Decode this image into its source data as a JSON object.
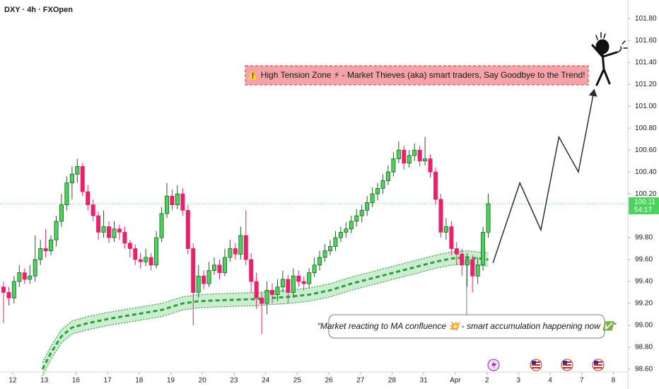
{
  "chart_data": {
    "type": "candlestick",
    "title": "DXY · 4h · FXOpen",
    "up_color": "#4cd35c",
    "down_color": "#ec1f6a",
    "xlim": [
      -0.67,
      118.5
    ],
    "ylim": [
      98.58,
      101.97
    ],
    "yticks": [
      {
        "value": 101.8,
        "label": "101.80"
      },
      {
        "value": 101.6,
        "label": "101.60"
      },
      {
        "value": 101.4,
        "label": "101.40"
      },
      {
        "value": 101.2,
        "label": "101.20"
      },
      {
        "value": 101.0,
        "label": "101.00"
      },
      {
        "value": 100.8,
        "label": "100.80"
      },
      {
        "value": 100.6,
        "label": "100.60"
      },
      {
        "value": 100.4,
        "label": "100.40"
      },
      {
        "value": 100.2,
        "label": "100.20"
      },
      {
        "value": 99.8,
        "label": "99.80"
      },
      {
        "value": 99.6,
        "label": "99.60"
      },
      {
        "value": 99.4,
        "label": "99.40"
      },
      {
        "value": 99.2,
        "label": "99.20"
      },
      {
        "value": 99.0,
        "label": "99.00"
      },
      {
        "value": 98.8,
        "label": "98.80"
      },
      {
        "value": 98.6,
        "label": "98.60"
      }
    ],
    "xticks": [
      {
        "value": 1.74,
        "label": "12"
      },
      {
        "value": 7.74,
        "label": "13"
      },
      {
        "value": 13.74,
        "label": "16"
      },
      {
        "value": 19.74,
        "label": "17"
      },
      {
        "value": 25.74,
        "label": "18"
      },
      {
        "value": 31.74,
        "label": "19"
      },
      {
        "value": 37.74,
        "label": "20"
      },
      {
        "value": 43.74,
        "label": "23"
      },
      {
        "value": 49.74,
        "label": "24"
      },
      {
        "value": 55.74,
        "label": "25"
      },
      {
        "value": 61.74,
        "label": "26"
      },
      {
        "value": 67.74,
        "label": "27"
      },
      {
        "value": 73.74,
        "label": "28"
      },
      {
        "value": 79.74,
        "label": "31"
      },
      {
        "value": 85.74,
        "label": "Apr"
      },
      {
        "value": 91.74,
        "label": "2"
      },
      {
        "value": 97.74,
        "label": "3"
      },
      {
        "value": 103.74,
        "label": "4"
      },
      {
        "value": 109.74,
        "label": "7"
      },
      {
        "value": 115.74,
        "label": "8"
      }
    ],
    "candles": [
      [
        99.35,
        99.4,
        99.02,
        99.3
      ],
      [
        99.3,
        99.35,
        99.18,
        99.25
      ],
      [
        99.25,
        99.45,
        99.2,
        99.4
      ],
      [
        99.4,
        99.55,
        99.35,
        99.48
      ],
      [
        99.48,
        99.52,
        99.38,
        99.42
      ],
      [
        99.42,
        99.55,
        99.38,
        99.45
      ],
      [
        99.45,
        99.82,
        99.4,
        99.6
      ],
      [
        99.6,
        99.78,
        99.55,
        99.7
      ],
      [
        99.7,
        99.88,
        99.62,
        99.68
      ],
      [
        99.68,
        99.82,
        99.64,
        99.78
      ],
      [
        99.78,
        100.0,
        99.72,
        99.95
      ],
      [
        99.95,
        100.2,
        99.9,
        100.1
      ],
      [
        100.1,
        100.36,
        100.05,
        100.3
      ],
      [
        100.3,
        100.45,
        100.15,
        100.38
      ],
      [
        100.38,
        100.52,
        100.3,
        100.45
      ],
      [
        100.45,
        100.48,
        100.18,
        100.22
      ],
      [
        100.22,
        100.28,
        100.05,
        100.1
      ],
      [
        100.1,
        100.15,
        99.95,
        100.0
      ],
      [
        100.0,
        100.04,
        99.78,
        99.85
      ],
      [
        99.85,
        100.05,
        99.8,
        99.9
      ],
      [
        99.9,
        99.95,
        99.75,
        99.8
      ],
      [
        99.8,
        99.95,
        99.76,
        99.88
      ],
      [
        99.88,
        99.92,
        99.78,
        99.85
      ],
      [
        99.85,
        99.9,
        99.7,
        99.75
      ],
      [
        99.75,
        99.78,
        99.62,
        99.7
      ],
      [
        99.7,
        99.74,
        99.55,
        99.6
      ],
      [
        99.6,
        99.66,
        99.52,
        99.58
      ],
      [
        99.58,
        99.7,
        99.54,
        99.62
      ],
      [
        99.62,
        99.66,
        99.5,
        99.55
      ],
      [
        99.55,
        99.86,
        99.52,
        99.8
      ],
      [
        99.8,
        100.08,
        99.76,
        100.02
      ],
      [
        100.02,
        100.3,
        99.98,
        100.18
      ],
      [
        100.18,
        100.24,
        100.05,
        100.1
      ],
      [
        100.1,
        100.28,
        100.06,
        100.2
      ],
      [
        100.2,
        100.25,
        100.0,
        100.05
      ],
      [
        100.05,
        100.1,
        99.65,
        99.7
      ],
      [
        99.7,
        99.75,
        99.0,
        99.3
      ],
      [
        99.3,
        99.55,
        99.25,
        99.45
      ],
      [
        99.45,
        99.5,
        99.33,
        99.38
      ],
      [
        99.38,
        99.58,
        99.35,
        99.5
      ],
      [
        99.5,
        99.62,
        99.46,
        99.55
      ],
      [
        99.55,
        99.6,
        99.42,
        99.48
      ],
      [
        99.48,
        99.7,
        99.45,
        99.62
      ],
      [
        99.62,
        99.78,
        99.58,
        99.7
      ],
      [
        99.7,
        99.75,
        99.6,
        99.65
      ],
      [
        99.65,
        99.9,
        99.6,
        99.82
      ],
      [
        99.82,
        100.05,
        99.55,
        99.6
      ],
      [
        99.6,
        99.66,
        99.3,
        99.4
      ],
      [
        99.4,
        99.48,
        99.15,
        99.25
      ],
      [
        99.25,
        99.3,
        98.92,
        99.2
      ],
      [
        99.2,
        99.4,
        99.1,
        99.32
      ],
      [
        99.32,
        99.38,
        99.2,
        99.28
      ],
      [
        99.28,
        99.42,
        99.22,
        99.35
      ],
      [
        99.35,
        99.5,
        99.3,
        99.42
      ],
      [
        99.42,
        99.46,
        99.2,
        99.3
      ],
      [
        99.3,
        99.52,
        99.25,
        99.45
      ],
      [
        99.45,
        99.5,
        99.35,
        99.4
      ],
      [
        99.4,
        99.45,
        99.32,
        99.38
      ],
      [
        99.38,
        99.52,
        99.34,
        99.48
      ],
      [
        99.48,
        99.62,
        99.44,
        99.55
      ],
      [
        99.55,
        99.68,
        99.5,
        99.62
      ],
      [
        99.62,
        99.74,
        99.58,
        99.68
      ],
      [
        99.68,
        99.78,
        99.64,
        99.72
      ],
      [
        99.72,
        99.86,
        99.68,
        99.8
      ],
      [
        99.8,
        99.9,
        99.76,
        99.85
      ],
      [
        99.85,
        99.94,
        99.8,
        99.88
      ],
      [
        99.88,
        100.0,
        99.84,
        99.95
      ],
      [
        99.95,
        100.06,
        99.9,
        100.0
      ],
      [
        100.0,
        100.1,
        99.94,
        100.05
      ],
      [
        100.05,
        100.18,
        100.0,
        100.12
      ],
      [
        100.12,
        100.26,
        100.08,
        100.2
      ],
      [
        100.2,
        100.3,
        100.14,
        100.25
      ],
      [
        100.25,
        100.38,
        100.2,
        100.32
      ],
      [
        100.32,
        100.46,
        100.28,
        100.4
      ],
      [
        100.4,
        100.58,
        100.36,
        100.52
      ],
      [
        100.52,
        100.68,
        100.48,
        100.6
      ],
      [
        100.6,
        100.64,
        100.42,
        100.48
      ],
      [
        100.48,
        100.6,
        100.44,
        100.55
      ],
      [
        100.55,
        100.66,
        100.5,
        100.6
      ],
      [
        100.6,
        100.64,
        100.45,
        100.5
      ],
      [
        100.5,
        100.72,
        100.46,
        100.52
      ],
      [
        100.52,
        100.56,
        100.35,
        100.4
      ],
      [
        100.4,
        100.44,
        100.1,
        100.15
      ],
      [
        100.15,
        100.2,
        99.8,
        99.85
      ],
      [
        99.85,
        99.98,
        99.78,
        99.9
      ],
      [
        99.9,
        99.95,
        99.64,
        99.7
      ],
      [
        99.7,
        99.76,
        99.55,
        99.65
      ],
      [
        99.65,
        99.7,
        99.45,
        99.55
      ],
      [
        99.55,
        99.66,
        99.35,
        99.6
      ],
      [
        99.6,
        99.64,
        99.3,
        99.45
      ],
      [
        99.45,
        99.62,
        99.38,
        99.55
      ],
      [
        99.55,
        99.9,
        99.5,
        99.85
      ],
      [
        99.85,
        100.2,
        99.8,
        100.11
      ]
    ],
    "ma": {
      "color": "#1fa834",
      "band": 0.06,
      "x": [
        7.4,
        9,
        11,
        13,
        16,
        20,
        25,
        30,
        34,
        37,
        42,
        48,
        54,
        58,
        62,
        66,
        70,
        74,
        78,
        82,
        85,
        88,
        92
      ],
      "values": [
        98.6,
        98.75,
        98.9,
        98.98,
        99.02,
        99.06,
        99.1,
        99.14,
        99.2,
        99.22,
        99.23,
        99.24,
        99.26,
        99.28,
        99.32,
        99.38,
        99.43,
        99.48,
        99.53,
        99.58,
        99.61,
        99.62,
        99.6
      ]
    },
    "projection": {
      "color": "#2a2e39",
      "x": [
        92.9,
        98,
        102,
        105.4,
        109.1,
        112.1
      ],
      "values": [
        99.57,
        100.3,
        99.87,
        100.72,
        100.4,
        101.15
      ]
    },
    "last_price": 100.11,
    "countdown": "54:17",
    "annotations": [
      "⚠️ High Tension Zone ⚡ - Market Thieves (aka) smart traders, Say Goodbye to the Trend!",
      "“Market reacting to MA confluence 💥 - smart accumulation happening now ✅”"
    ]
  }
}
